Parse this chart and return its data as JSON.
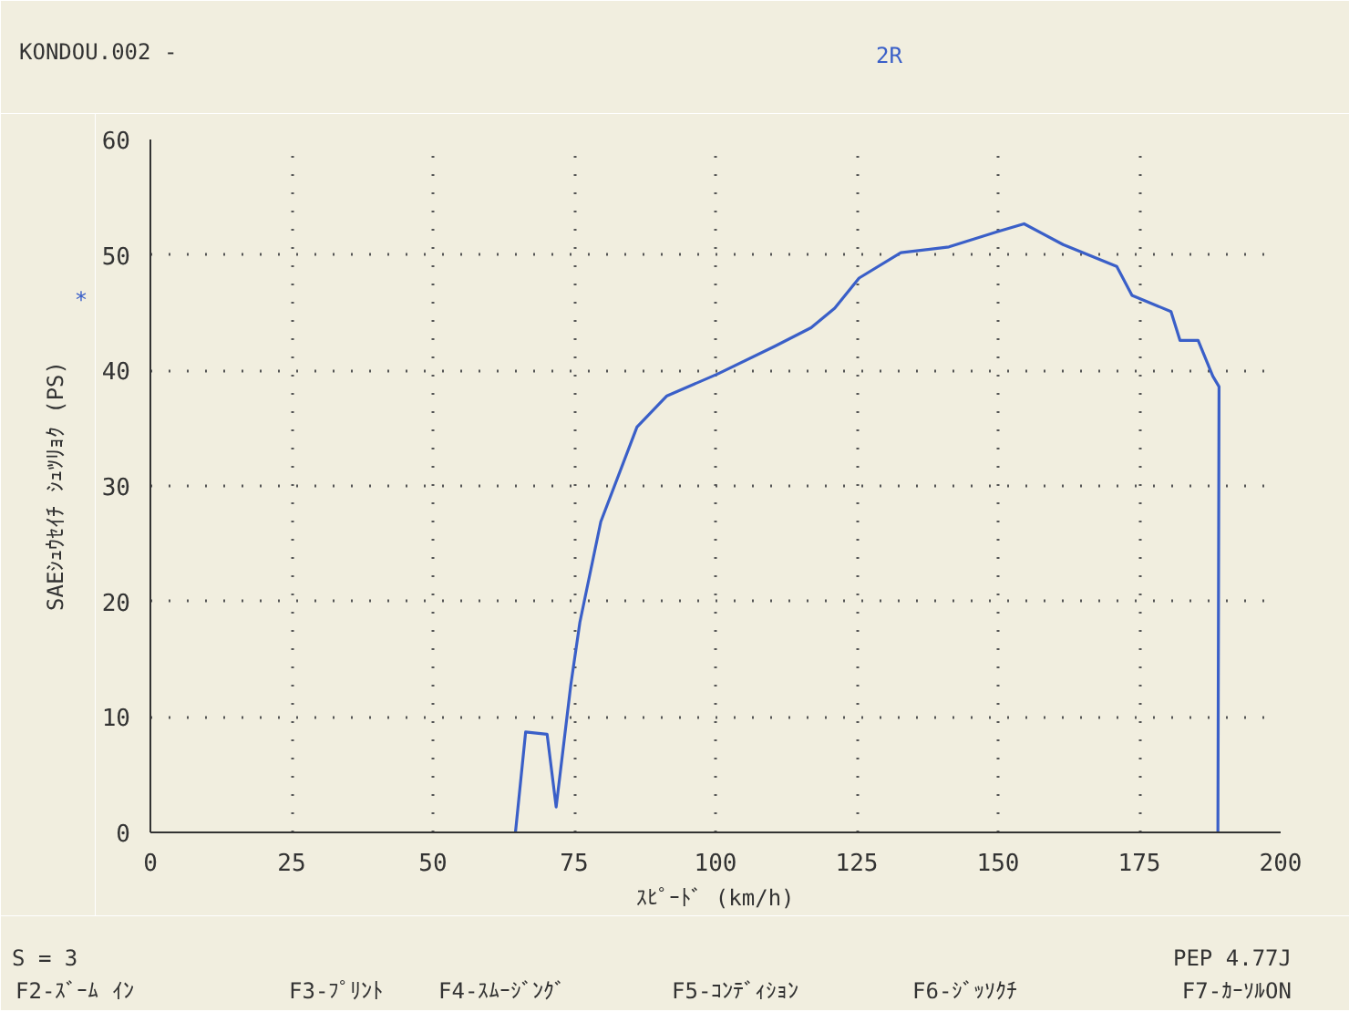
{
  "chart_data": {
    "type": "line",
    "title": "2R",
    "subtitle": "KONDOU.002 -",
    "xlabel": "ｽﾋﾟｰﾄﾞ (km/h)",
    "ylabel": "SAEｼｭｳｾｲﾁ ｼｭﾂﾘｮｸ (PS)",
    "annotations": [
      "*",
      "S = 3",
      "PEP 4.77J",
      "F2-ｽﾞｰﾑ ｲﾝ",
      "F3-ﾌﾟﾘﾝﾄ",
      "F4-ｽﾑｰｼﾞﾝｸﾞ",
      "F5-ｺﾝﾃﾞｨｼｮﾝ",
      "F6-ｼﾞｯｿｸﾁ",
      "F7-ｶｰｿﾙON"
    ],
    "series": [
      {
        "color": "#3a5fc8",
        "x": [
          64.6,
          66.4,
          70.2,
          71.8,
          74.4,
          76.0,
          79.7,
          86.1,
          91.4,
          100.4,
          110.5,
          116.9,
          121.1,
          125.4,
          132.8,
          141.3,
          149.8,
          154.6,
          161.5,
          171.0,
          173.7,
          180.6,
          182.2,
          185.4,
          188.0,
          189.1,
          188.9
        ],
        "values": [
          0,
          8.7,
          8.5,
          2.2,
          12.8,
          18.2,
          26.9,
          35.1,
          37.8,
          39.7,
          42.1,
          43.7,
          45.4,
          48.0,
          50.2,
          50.7,
          52.0,
          52.7,
          50.9,
          49.0,
          46.5,
          45.1,
          42.6,
          42.6,
          39.5,
          38.6,
          0
        ]
      }
    ],
    "xlim": [
      0,
      200
    ],
    "ylim": [
      0,
      60
    ],
    "xticks": [
      0,
      25,
      50,
      75,
      100,
      125,
      150,
      175,
      200
    ],
    "yticks": [
      0,
      10,
      20,
      30,
      40,
      50,
      60
    ],
    "grid": true,
    "line_style": "solid",
    "marker": "none"
  }
}
